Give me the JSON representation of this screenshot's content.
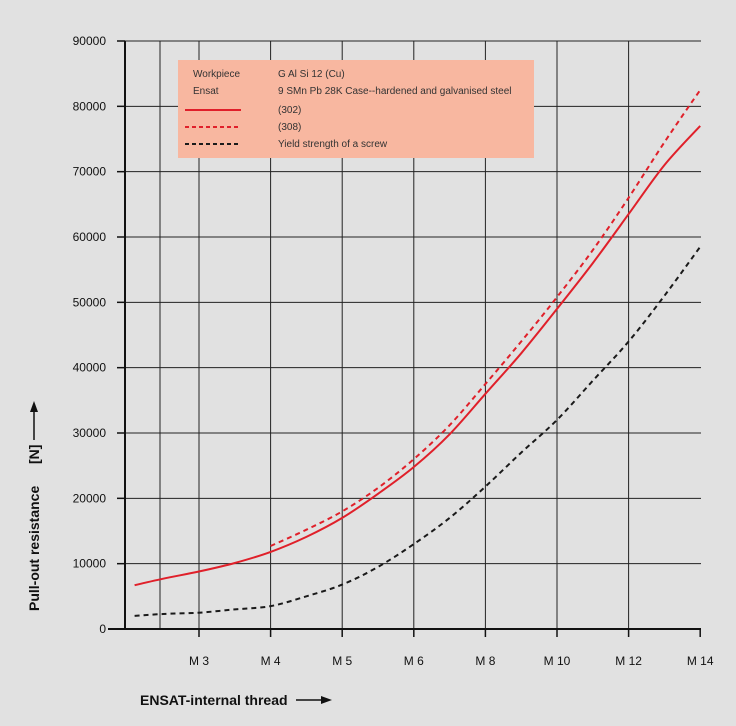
{
  "chart_data": {
    "type": "line",
    "x_ticks": [
      "M 3",
      "M 4",
      "M 5",
      "M 6",
      "M 8",
      "M 10",
      "M 12",
      "M 14"
    ],
    "xlabel": "ENSAT-internal thread",
    "ylabel": "Pull-out resistance",
    "yunit": "[N]",
    "ylim": [
      0,
      90000
    ],
    "y_ticks": [
      "0",
      "10000",
      "20000",
      "30000",
      "40000",
      "50000",
      "60000",
      "70000",
      "80000",
      "90000"
    ],
    "y_tick_values": [
      0,
      10000,
      20000,
      30000,
      40000,
      50000,
      60000,
      70000,
      80000,
      90000
    ],
    "grid": true,
    "legend_position": "top-left",
    "legend": {
      "header_col1": "Workpiece",
      "header_col2": "G Al Si 12 (Cu)",
      "row2_col1": "Ensat",
      "row2_col2": "9 SMn Pb 28K Case--hardened and galvanised steel"
    },
    "colors": {
      "background": "#e1e1e1",
      "legend_box": "#f8b7a0",
      "red": "#e0202a",
      "black": "#1a1a1a",
      "grid": "#222222"
    },
    "series": [
      {
        "name": "(302)",
        "color": "#e0202a",
        "style": "solid",
        "points": [
          [
            -0.9,
            6700
          ],
          [
            -0.5,
            7700
          ],
          [
            0,
            8800
          ],
          [
            0.5,
            10100
          ],
          [
            1,
            11800
          ],
          [
            1.5,
            14100
          ],
          [
            2,
            17000
          ],
          [
            2.5,
            20700
          ],
          [
            3,
            24800
          ],
          [
            3.5,
            29800
          ],
          [
            4,
            36000
          ],
          [
            4.5,
            42200
          ],
          [
            5,
            49000
          ],
          [
            5.5,
            56000
          ],
          [
            6,
            63500
          ],
          [
            6.5,
            71000
          ],
          [
            7,
            77000
          ]
        ]
      },
      {
        "name": "(308)",
        "color": "#e0202a",
        "style": "dashed",
        "points": [
          [
            1,
            12700
          ],
          [
            1.5,
            15200
          ],
          [
            2,
            18000
          ],
          [
            2.5,
            21600
          ],
          [
            3,
            26000
          ],
          [
            3.5,
            31200
          ],
          [
            4,
            37500
          ],
          [
            4.5,
            44000
          ],
          [
            5,
            50800
          ],
          [
            5.5,
            58000
          ],
          [
            6,
            66000
          ],
          [
            6.5,
            74500
          ],
          [
            7,
            82500
          ]
        ]
      },
      {
        "name": "Yield strength of a screw",
        "color": "#1a1a1a",
        "style": "dashed",
        "points": [
          [
            -0.9,
            2000
          ],
          [
            -0.5,
            2300
          ],
          [
            0,
            2500
          ],
          [
            0.5,
            3000
          ],
          [
            1,
            3500
          ],
          [
            1.5,
            5000
          ],
          [
            2,
            6800
          ],
          [
            2.5,
            9500
          ],
          [
            3,
            13000
          ],
          [
            3.5,
            17000
          ],
          [
            4,
            21800
          ],
          [
            4.5,
            27000
          ],
          [
            5,
            32000
          ],
          [
            5.5,
            38000
          ],
          [
            6,
            44000
          ],
          [
            6.5,
            51000
          ],
          [
            7,
            58500
          ]
        ]
      }
    ]
  }
}
